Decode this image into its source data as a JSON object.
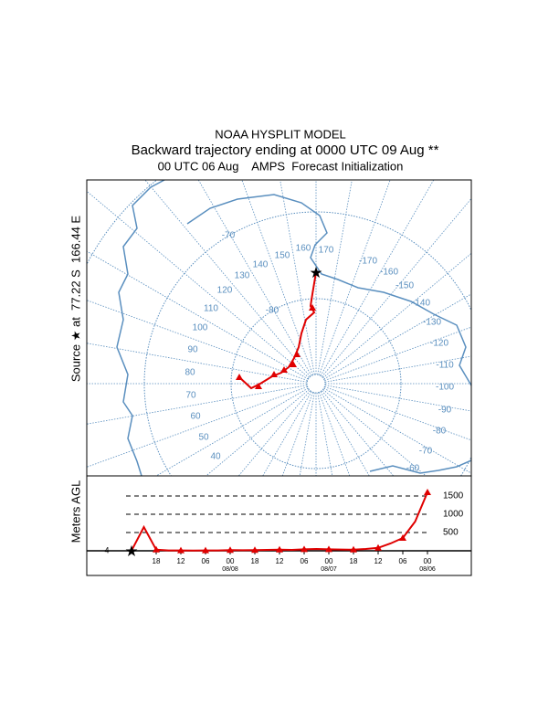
{
  "header": {
    "title": "NOAA HYSPLIT MODEL",
    "subtitle": "Backward trajectory ending at 0000 UTC 09 Aug **",
    "info": "00 UTC 06 Aug    AMPS  Forecast Initialization"
  },
  "source_label": "Source ★ at  77.22 S  166.44 E",
  "map": {
    "labels": [
      "-70",
      "150",
      "160",
      "170",
      "-170",
      "-160",
      "-150",
      "-140",
      "-130",
      "-120",
      "-110",
      "-100",
      "-90",
      "-80",
      "-70",
      "-60",
      "140",
      "130",
      "120",
      "110",
      "100",
      "90",
      "80",
      "70",
      "60",
      "50",
      "40",
      "-80"
    ]
  },
  "chart_data": {
    "type": "line",
    "y_label": "Meters AGL",
    "source_height": 4,
    "categories": [
      null,
      null,
      "18",
      null,
      "12",
      null,
      "06",
      null,
      "00",
      null,
      "18",
      null,
      "12",
      null,
      "06",
      null,
      "00",
      null,
      "18",
      null,
      "12",
      null,
      "06",
      null,
      "00"
    ],
    "dates": [
      "08/08",
      "08/07",
      "08/06"
    ],
    "series": [
      {
        "color": "#e00000",
        "values": [
          4,
          650,
          30,
          10,
          10,
          5,
          10,
          10,
          20,
          15,
          20,
          25,
          30,
          25,
          40,
          50,
          40,
          35,
          30,
          50,
          80,
          200,
          350,
          800,
          1600
        ]
      }
    ],
    "ylim": [
      0,
      2050
    ],
    "yticks": [
      500,
      1000,
      1500
    ]
  }
}
